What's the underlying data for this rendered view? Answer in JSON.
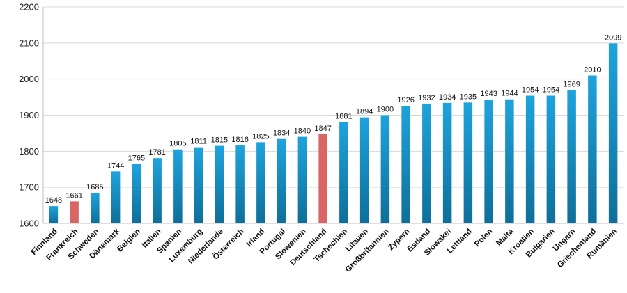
{
  "chart_data": {
    "type": "bar",
    "title": "",
    "xlabel": "",
    "ylabel": "",
    "ylim": [
      1600,
      2200
    ],
    "yticks": [
      1600,
      1700,
      1800,
      1900,
      2000,
      2100,
      2200
    ],
    "grid": true,
    "legend": "none",
    "colors": {
      "default": "#1a8cc4",
      "default_dark": "#0e6f99",
      "highlight": "#d96565"
    },
    "categories": [
      "Finnland",
      "Frankreich",
      "Schweden",
      "Dänemark",
      "Belgien",
      "Italien",
      "Spanien",
      "Luxemburg",
      "Niederlande",
      "Österreich",
      "Irland",
      "Portugal",
      "Slowenien",
      "Deutschland",
      "Tschechien",
      "Litauen",
      "Großbritannien",
      "Zypern",
      "Estland",
      "Slowakei",
      "Lettland",
      "Polen",
      "Malta",
      "Kroatien",
      "Bulgarien",
      "Ungarn",
      "Griechenland",
      "Rumänien"
    ],
    "values": [
      1648,
      1661,
      1685,
      1744,
      1765,
      1781,
      1805,
      1811,
      1815,
      1816,
      1825,
      1834,
      1840,
      1847,
      1881,
      1894,
      1900,
      1926,
      1932,
      1934,
      1935,
      1943,
      1944,
      1954,
      1954,
      1969,
      2010,
      2099
    ],
    "data_labels": [
      "1648",
      "1661",
      "1685",
      "1744",
      "1765",
      "1781",
      "1805",
      "1811",
      "1815",
      "1816",
      "1825",
      "1834",
      "1840",
      "1847",
      "1881",
      "1894",
      "1900",
      "1926",
      "1932",
      "1934",
      "1935",
      "1943",
      "1944",
      "1954",
      "1954",
      "1969",
      "2010",
      "2099"
    ],
    "highlighted": [
      "Frankreich",
      "Deutschland"
    ]
  }
}
